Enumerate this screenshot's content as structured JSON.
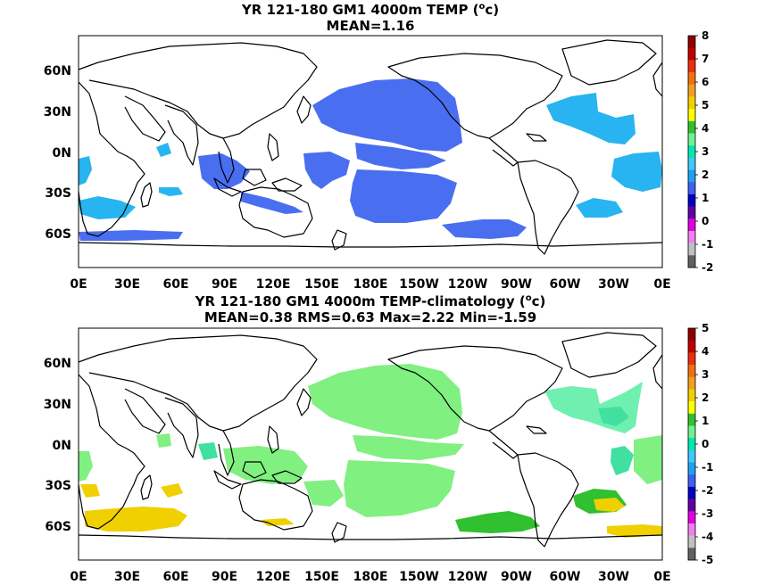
{
  "panels": [
    {
      "title_main": "YR 121-180 GM1 4000m TEMP (",
      "title_unit_sup": "o",
      "title_unit_tail": "c)",
      "stats_line": "MEAN=1.16",
      "x_ticks": [
        "0E",
        "30E",
        "60E",
        "90E",
        "120E",
        "150E",
        "180E",
        "150W",
        "120W",
        "90W",
        "60W",
        "30W",
        "0E"
      ],
      "y_ticks": [
        "60N",
        "30N",
        "0N",
        "30S",
        "60S"
      ],
      "colorbar": {
        "labels": [
          "8",
          "7",
          "6",
          "5",
          "4",
          "3",
          "2",
          "1",
          "0",
          "-1",
          "-2"
        ],
        "colors": [
          "#8b0000",
          "#c00000",
          "#e83010",
          "#f07010",
          "#f0a020",
          "#f0d000",
          "#ffff00",
          "#30c030",
          "#70f090",
          "#00e8b0",
          "#40c8f8",
          "#20a0f0",
          "#4060f0",
          "#0000c0",
          "#6000a0",
          "#e000e0",
          "#f080f0",
          "#c0c0c0",
          "#606060"
        ]
      },
      "regions": [
        {
          "name": "north-pacific-blob",
          "color": "#4a6ef0"
        },
        {
          "name": "tropical-pacific-blob",
          "color": "#4a6ef0"
        },
        {
          "name": "south-pacific-blob",
          "color": "#4a6ef0"
        },
        {
          "name": "tasman-blob",
          "color": "#4a6ef0"
        },
        {
          "name": "south-indian-blob",
          "color": "#4a6ef0"
        },
        {
          "name": "southern-ocean-band",
          "color": "#4a6ef0"
        },
        {
          "name": "west-atlantic-blob",
          "color": "#28b4f0"
        },
        {
          "name": "south-atlantic-blob",
          "color": "#28b4f0"
        },
        {
          "name": "west-indian-blob",
          "color": "#28b4f0"
        },
        {
          "name": "agulhas-blob",
          "color": "#28b4f0"
        }
      ]
    },
    {
      "title_main": "YR 121-180 GM1 4000m TEMP-climatology (",
      "title_unit_sup": "o",
      "title_unit_tail": "c)",
      "stats_line": "MEAN=0.38   RMS=0.63   Max=2.22   Min=-1.59",
      "x_ticks": [
        "0E",
        "30E",
        "60E",
        "90E",
        "120E",
        "150E",
        "180E",
        "150W",
        "120W",
        "90W",
        "60W",
        "30W",
        "0E"
      ],
      "y_ticks": [
        "60N",
        "30N",
        "0N",
        "30S",
        "60S"
      ],
      "colorbar": {
        "labels": [
          "5",
          "4",
          "3",
          "2",
          "1",
          "0",
          "-1",
          "-2",
          "-3",
          "-4",
          "-5"
        ],
        "colors": [
          "#8b0000",
          "#c00000",
          "#e83010",
          "#f07010",
          "#f0a020",
          "#f0d000",
          "#ffff00",
          "#30c030",
          "#70f090",
          "#00e8b0",
          "#40c8f8",
          "#20a0f0",
          "#4060f0",
          "#0000c0",
          "#6000a0",
          "#e000e0",
          "#f080f0",
          "#c0c0c0",
          "#606060"
        ]
      },
      "regions": [
        {
          "name": "north-pacific-blob",
          "color": "#80f080"
        },
        {
          "name": "tropical-pacific-blob",
          "color": "#80f080"
        },
        {
          "name": "south-pacific-blob",
          "color": "#80f080"
        },
        {
          "name": "indian-blob",
          "color": "#80f080"
        },
        {
          "name": "west-atlantic-blob",
          "color": "#70f0b0"
        },
        {
          "name": "south-atlantic-yellow",
          "color": "#f0d000"
        },
        {
          "name": "south-indian-yellow",
          "color": "#f0d000"
        },
        {
          "name": "south-pacific-green",
          "color": "#30c030"
        },
        {
          "name": "south-atlantic-green",
          "color": "#30c030"
        }
      ]
    }
  ]
}
